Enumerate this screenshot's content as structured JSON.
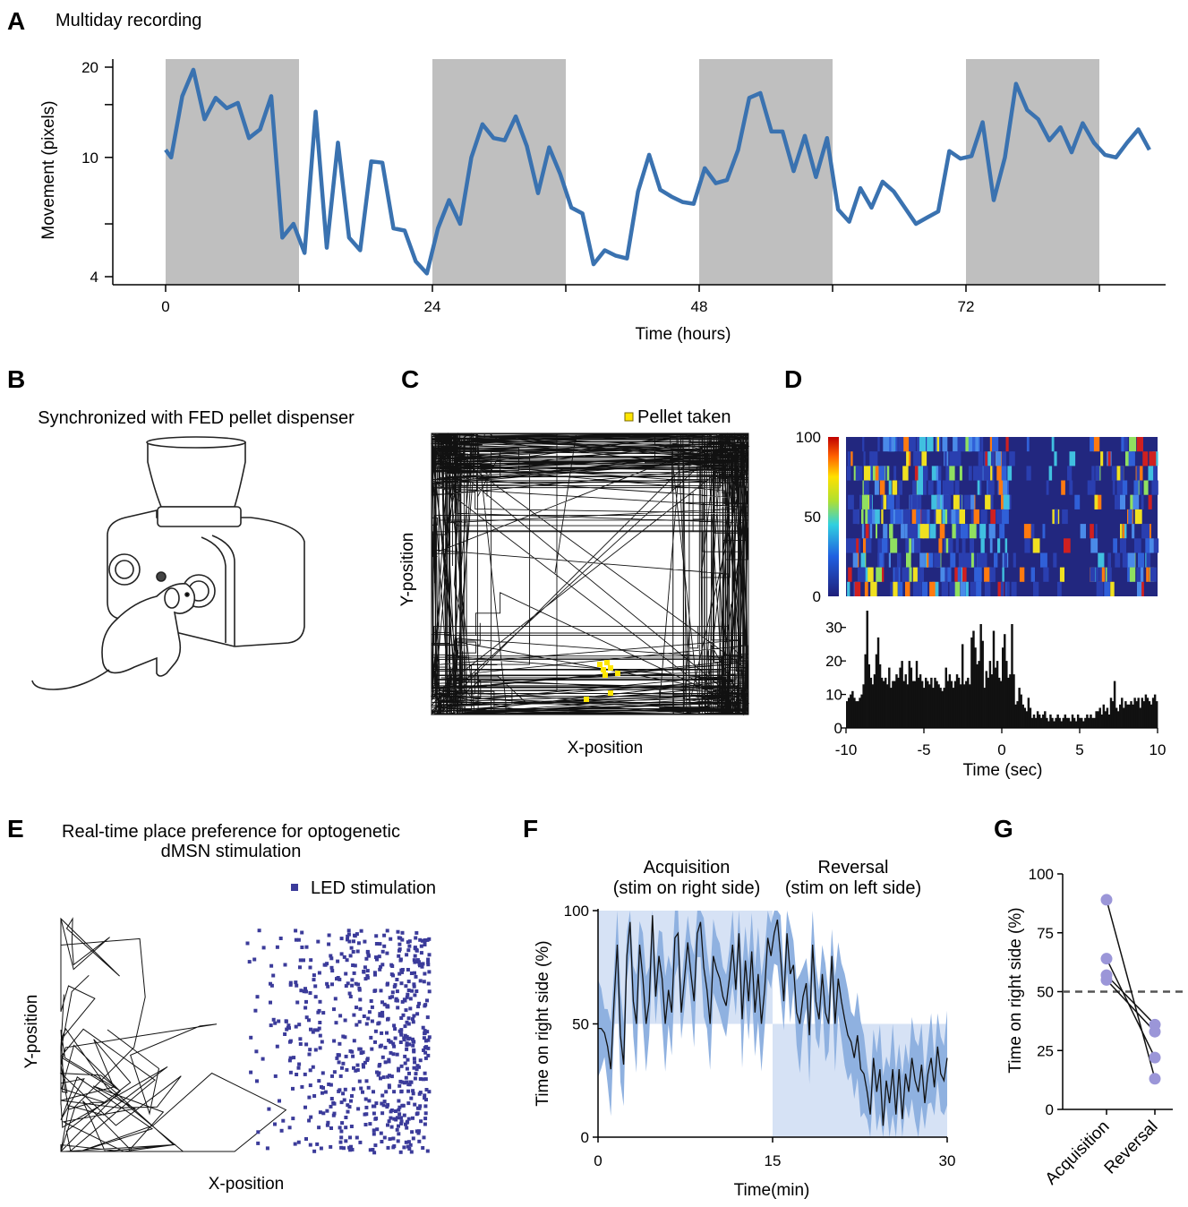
{
  "panels": {
    "A": {
      "label": "A",
      "title": "Multiday recording"
    },
    "B": {
      "label": "B",
      "title": "Synchronized with FED pellet dispenser"
    },
    "C": {
      "label": "C",
      "legend": "Pellet taken",
      "xlabel": "X-position",
      "ylabel": "Y-position"
    },
    "D": {
      "label": "D",
      "xlabel": "Time (sec)",
      "cbar_ticks": [
        "100",
        "50",
        "0"
      ]
    },
    "E": {
      "label": "E",
      "title_line1": "Real-time place preference for optogenetic",
      "title_line2": "dMSN stimulation",
      "legend": "LED stimulation",
      "xlabel": "X-position",
      "ylabel": "Y-position"
    },
    "F": {
      "label": "F",
      "phase1_line1": "Acquisition",
      "phase1_line2": "(stim on right side)",
      "phase2_line1": "Reversal",
      "phase2_line2": "(stim on left side)"
    },
    "G": {
      "label": "G"
    }
  },
  "colors": {
    "line_blue": "#3a72b0",
    "night_gray": "#bfbfbf",
    "led_purple": "#3b3b9a",
    "pellet_yellow": "#ffe600",
    "band_blue": "#8fb1e0",
    "stim_blue": "#d6e2f5",
    "dot_purple": "#9b96d8"
  },
  "chart_data": [
    {
      "type": "line",
      "xlabel": "Time (hours)",
      "ylabel": "Movement (pixels)",
      "xticks": [
        "0",
        "24",
        "48",
        "72"
      ],
      "yticks": [
        "4",
        "10",
        "20"
      ],
      "xlim": [
        -5,
        90
      ],
      "ylim": [
        3.5,
        21
      ],
      "scale": "log-y",
      "shaded_intervals_hours": [
        [
          0,
          12
        ],
        [
          24,
          36
        ],
        [
          48,
          60
        ],
        [
          72,
          84
        ]
      ],
      "series": [
        {
          "x": [
            0,
            0.5,
            1.5,
            2.5,
            3.5,
            4.5,
            5.5,
            6.5,
            7.5,
            8.5,
            9.5,
            10.5,
            11.5,
            12.5,
            13.5,
            14.5,
            15.5,
            16.5,
            17.5,
            18.5,
            19.5,
            20.5,
            21.5,
            22.5,
            23.5,
            24.5,
            25.5,
            26.5,
            27.5,
            28.5,
            29.5,
            30.5,
            31.5,
            32.5,
            33.5,
            34.5,
            35.5,
            36.5,
            37.5,
            38.5,
            39.5,
            40.5,
            41.5,
            42.5,
            43.5,
            44.5,
            45.5,
            46.5,
            47.5,
            48.5,
            49.5,
            50.5,
            51.5,
            52.5,
            53.5,
            54.5,
            55.5,
            56.5,
            57.5,
            58.5,
            59.5,
            60.5,
            61.5,
            62.5,
            63.5,
            64.5,
            65.5,
            66.5,
            67.5,
            68.5,
            69.5,
            70.5,
            71.5,
            72.5,
            73.5,
            74.5,
            75.5,
            76.5,
            77.5,
            78.5,
            79.5,
            80.5,
            81.5,
            82.5,
            83.5,
            84.5,
            85.5,
            86.5,
            87.5,
            88.5
          ],
          "values": [
            10.6,
            10.0,
            16.0,
            19.6,
            13.4,
            15.8,
            14.6,
            15.2,
            11.6,
            12.4,
            16.0,
            5.4,
            6.0,
            4.8,
            14.2,
            5.0,
            11.2,
            5.4,
            4.9,
            9.7,
            9.6,
            5.8,
            5.7,
            4.5,
            4.1,
            5.8,
            7.2,
            6.0,
            10.0,
            12.9,
            11.6,
            11.4,
            13.7,
            10.9,
            7.6,
            10.8,
            8.8,
            6.8,
            6.5,
            4.4,
            4.9,
            4.7,
            4.6,
            7.7,
            10.2,
            7.8,
            7.4,
            7.1,
            7.0,
            9.2,
            8.2,
            8.4,
            10.6,
            15.8,
            16.4,
            12.2,
            12.2,
            9.0,
            11.8,
            8.6,
            11.6,
            6.7,
            6.1,
            7.9,
            6.8,
            8.3,
            7.7,
            6.8,
            6.0,
            6.3,
            6.6,
            10.5,
            9.9,
            10.1,
            13.1,
            7.2,
            10.0,
            17.6,
            14.4,
            13.4,
            11.4,
            12.6,
            10.4,
            13.0,
            11.2,
            10.2,
            10.0,
            11.2,
            12.4,
            10.6
          ]
        }
      ]
    },
    {
      "type": "heatmap",
      "xlabel": "Time (sec)",
      "xlim": [
        -10,
        10
      ],
      "xticks": [
        "-10",
        "-5",
        "0",
        "5",
        "10"
      ],
      "ylim": [
        0,
        100
      ],
      "yticks": [
        "0",
        "50",
        "100"
      ],
      "colorbar_ticks": [
        "0",
        "50",
        "100"
      ],
      "row_count": 11
    },
    {
      "type": "bar",
      "xlabel": "Time (sec)",
      "xlim": [
        -10,
        10
      ],
      "xticks": [
        "-10",
        "-5",
        "0",
        "5",
        "10"
      ],
      "ylim": [
        0,
        35
      ],
      "yticks": [
        "0",
        "10",
        "20",
        "30"
      ],
      "values_profile": [
        8,
        9,
        10,
        11,
        9,
        8,
        8,
        9,
        10,
        13,
        22,
        35,
        19,
        15,
        13,
        16,
        22,
        27,
        19,
        15,
        14,
        15,
        13,
        18,
        12,
        14,
        14,
        16,
        15,
        18,
        20,
        14,
        16,
        13,
        20,
        18,
        14,
        14,
        20,
        15,
        16,
        14,
        12,
        15,
        14,
        13,
        15,
        12,
        15,
        14,
        13,
        12,
        11,
        12,
        18,
        14,
        16,
        14,
        12,
        14,
        16,
        15,
        13,
        25,
        13,
        14,
        15,
        13,
        27,
        29,
        24,
        19,
        20,
        31,
        26,
        12,
        17,
        15,
        20,
        16,
        29,
        18,
        20,
        15,
        14,
        24,
        28,
        20,
        15,
        16,
        31,
        16,
        7,
        8,
        12,
        10,
        7,
        6,
        5,
        9,
        6,
        3,
        4,
        3,
        5,
        4,
        3,
        4,
        5,
        3,
        2,
        4,
        3,
        2,
        3,
        4,
        3,
        2,
        3,
        4,
        3,
        3,
        2,
        4,
        3,
        2,
        4,
        3,
        3,
        2,
        3,
        4,
        3,
        4,
        3,
        3,
        5,
        5,
        6,
        4,
        7,
        5,
        6,
        4,
        9,
        8,
        14,
        6,
        5,
        7,
        9,
        6,
        8,
        7,
        7,
        8,
        7,
        9,
        8,
        9,
        6,
        9,
        8,
        10,
        9,
        8,
        7,
        9,
        10,
        8
      ]
    },
    {
      "type": "line",
      "xlabel": "Time(min)",
      "ylabel": "Time on right side (%)",
      "xlim": [
        0,
        30
      ],
      "ylim": [
        0,
        100
      ],
      "xticks": [
        "0",
        "15",
        "30"
      ],
      "yticks": [
        "0",
        "50",
        "100"
      ],
      "stim_blocks": [
        {
          "x": [
            0,
            15
          ],
          "y": [
            50,
            100
          ]
        },
        {
          "x": [
            15,
            30
          ],
          "y": [
            0,
            50
          ]
        }
      ],
      "series": [
        {
          "name": "mean",
          "values": [
            48,
            48,
            46,
            40,
            30,
            60,
            85,
            45,
            32,
            80,
            95,
            60,
            50,
            85,
            70,
            50,
            60,
            98,
            62,
            80,
            70,
            50,
            65,
            55,
            88,
            90,
            55,
            70,
            86,
            72,
            60,
            90,
            95,
            75,
            65,
            50,
            80,
            74,
            70,
            62,
            58,
            70,
            85,
            65,
            90,
            52,
            78,
            60,
            82,
            55,
            72,
            50,
            65,
            88,
            80,
            90,
            96,
            80,
            60,
            90,
            72,
            76,
            55,
            50,
            62,
            68,
            45,
            85,
            60,
            52,
            72,
            55,
            50,
            80,
            50,
            70,
            60,
            52,
            45,
            42,
            35,
            45,
            30,
            28,
            20,
            10,
            35,
            20,
            30,
            5,
            25,
            15,
            30,
            10,
            30,
            8,
            28,
            20,
            35,
            25,
            20,
            32,
            15,
            28,
            35,
            22,
            40,
            28,
            25,
            35
          ]
        }
      ]
    },
    {
      "type": "scatter",
      "ylabel": "Time on right side (%)",
      "categories": [
        "Acquisition",
        "Reversal"
      ],
      "ylim": [
        0,
        100
      ],
      "yticks": [
        "0",
        "25",
        "50",
        "75",
        "100"
      ],
      "reference_line": 50,
      "pairs": [
        [
          89,
          13
        ],
        [
          64,
          22
        ],
        [
          57,
          36
        ],
        [
          55,
          33
        ]
      ]
    }
  ]
}
